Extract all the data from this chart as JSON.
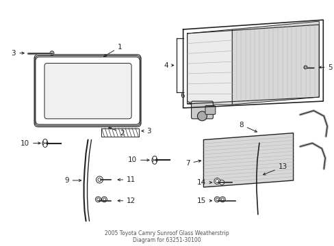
{
  "bg_color": "#ffffff",
  "line_color": "#222222",
  "figsize": [
    4.89,
    3.6
  ],
  "dpi": 100,
  "title": "2005 Toyota Camry Sunroof Glass Weatherstrip\nDiagram for 63251-30100"
}
